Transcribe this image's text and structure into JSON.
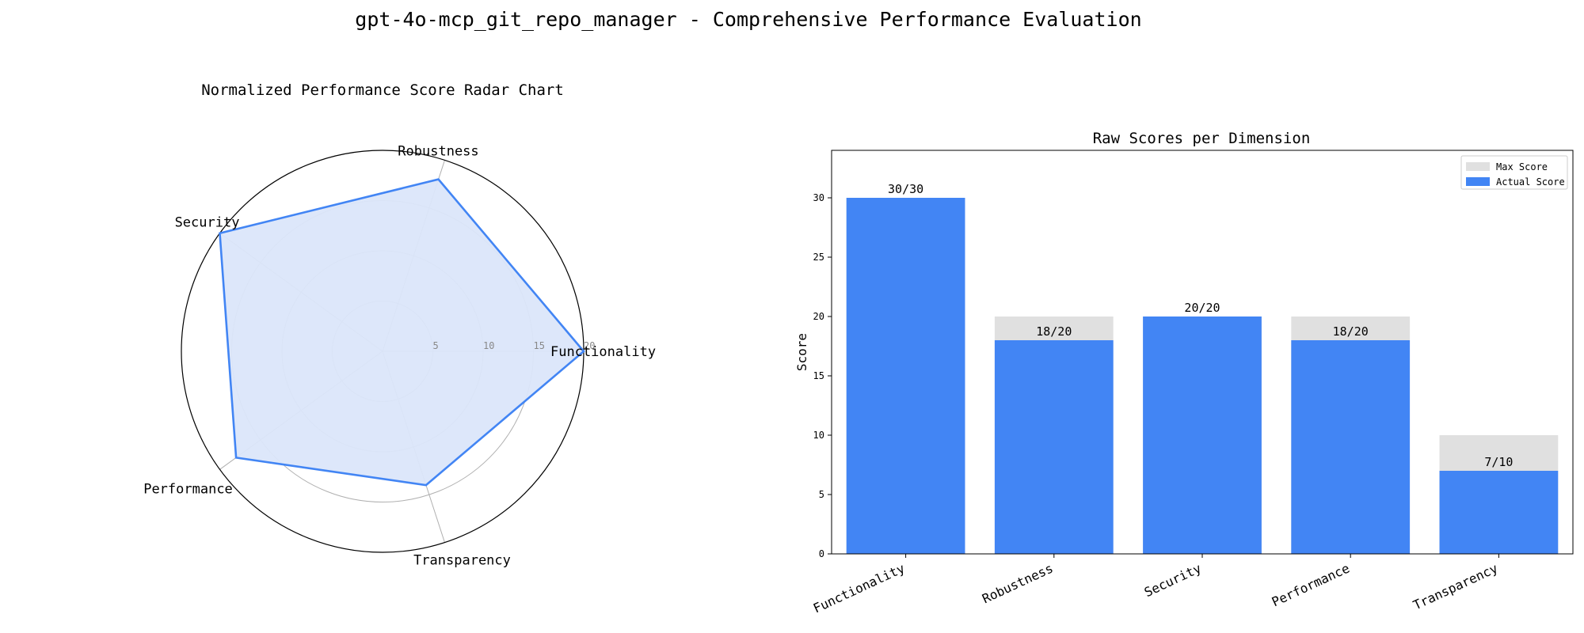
{
  "figure_title": "gpt-4o-mcp_git_repo_manager - Comprehensive Performance Evaluation",
  "colors": {
    "accent": "#4285f4",
    "radar_fill": "#dbe6fa",
    "max_bar": "#e0e0e0",
    "grid": "#b0b0b0"
  },
  "chart_data": [
    {
      "type": "radar",
      "title": "Normalized Performance Score Radar Chart",
      "axes": [
        "Functionality",
        "Robustness",
        "Security",
        "Performance",
        "Transparency"
      ],
      "values": [
        20,
        18,
        20,
        18,
        14
      ],
      "radial_range": [
        0,
        20
      ],
      "radial_ticks": [
        "5",
        "10",
        "15",
        "20"
      ],
      "grid": true
    },
    {
      "type": "bar",
      "title": "Raw Scores per Dimension",
      "categories": [
        "Functionality",
        "Robustness",
        "Security",
        "Performance",
        "Transparency"
      ],
      "xlabel": "",
      "ylabel": "Score",
      "ylim": [
        0,
        34
      ],
      "yticks": [
        "0",
        "5",
        "10",
        "15",
        "20",
        "25",
        "30"
      ],
      "series": [
        {
          "name": "Max Score",
          "values": [
            30,
            20,
            20,
            20,
            10
          ]
        },
        {
          "name": "Actual Score",
          "values": [
            30,
            18,
            20,
            18,
            7
          ]
        }
      ],
      "data_labels": [
        "30/30",
        "18/20",
        "20/20",
        "18/20",
        "7/10"
      ],
      "legend_position": "top-right",
      "grid": false
    }
  ]
}
